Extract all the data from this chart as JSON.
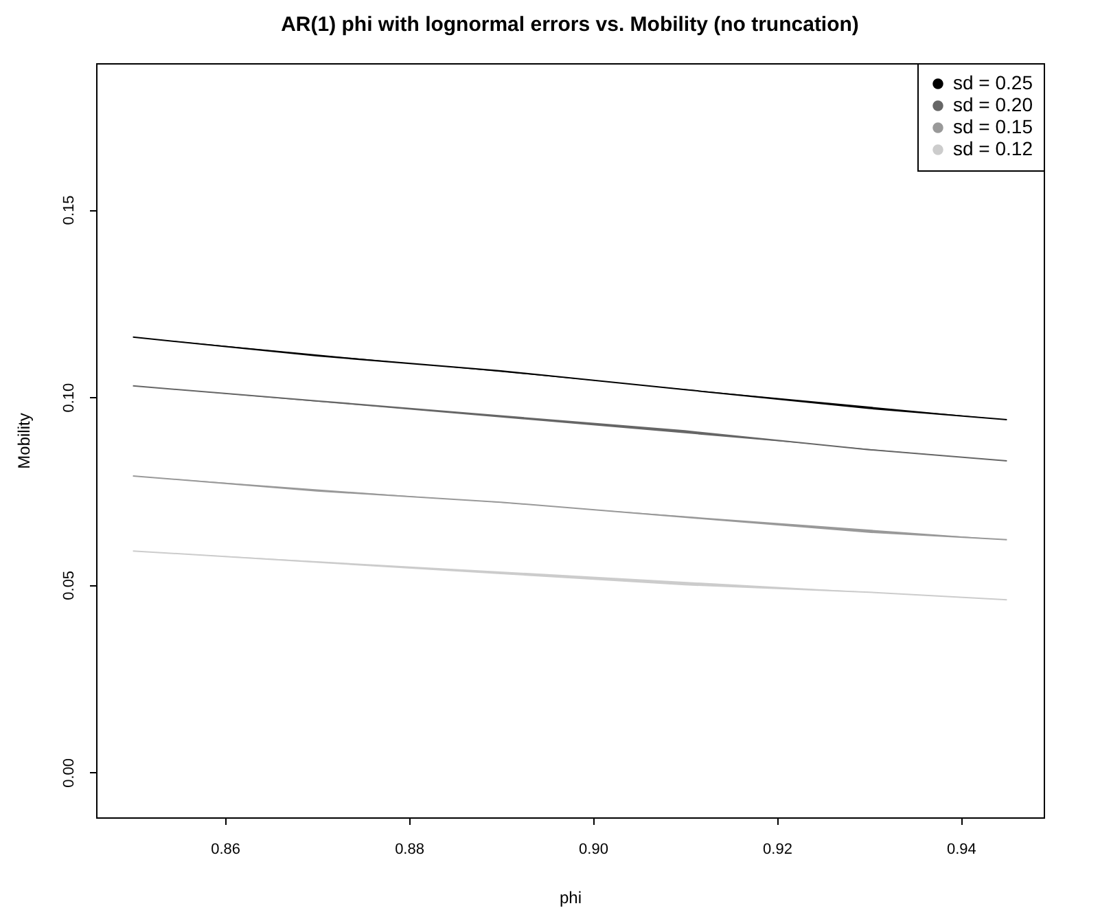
{
  "chart_data": {
    "type": "line",
    "title": "AR(1) phi with lognormal errors vs. Mobility (no truncation)",
    "xlabel": "phi",
    "ylabel": "Mobility",
    "x": [
      0.85,
      0.87,
      0.89,
      0.91,
      0.93,
      0.945
    ],
    "series": [
      {
        "name": "sd = 0.25",
        "color": "#000000",
        "values": [
          0.116,
          0.111,
          0.107,
          0.102,
          0.097,
          0.094
        ]
      },
      {
        "name": "sd = 0.20",
        "color": "#666666",
        "values": [
          0.103,
          0.099,
          0.095,
          0.091,
          0.086,
          0.083
        ]
      },
      {
        "name": "sd = 0.15",
        "color": "#999999",
        "values": [
          0.079,
          0.075,
          0.072,
          0.068,
          0.064,
          0.062
        ]
      },
      {
        "name": "sd = 0.12",
        "color": "#cccccc",
        "values": [
          0.059,
          0.056,
          0.053,
          0.05,
          0.048,
          0.046
        ]
      }
    ],
    "xlim": [
      0.846,
      0.949
    ],
    "xticks": [
      0.86,
      0.88,
      {
        "value": 0.9,
        "label": "0.90"
      },
      0.92,
      0.94
    ],
    "ylim": [
      -0.012,
      0.189
    ],
    "yticks": [
      {
        "value": 0,
        "label": "0.00"
      },
      0.05,
      {
        "value": 0.1,
        "label": "0.10"
      },
      0.15
    ],
    "legend": "top right",
    "marker": "none",
    "line_style": "solid",
    "grid": false
  }
}
